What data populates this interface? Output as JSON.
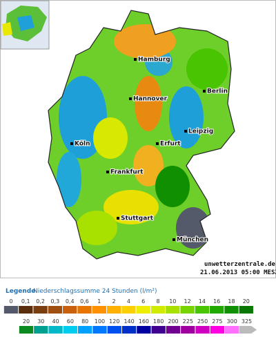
{
  "map": {
    "cities": [
      "Hamburg",
      "Berlin",
      "Hannover",
      "Leipzig",
      "Köln",
      "Erfurt",
      "Frankfurt",
      "Stuttgart",
      "München"
    ],
    "source": "unwetterzentrale.de",
    "timestamp": "21.06.2013 05:00 MESZ"
  },
  "legend": {
    "title": "Legende",
    "subtitle": "Niederschlagssumme 24 Stunden (l/m²)",
    "row1": [
      {
        "label": "0",
        "color": "#555a6a"
      },
      {
        "label": "0,1",
        "color": "#5a2e0c"
      },
      {
        "label": "0,2",
        "color": "#7a3e10"
      },
      {
        "label": "0,3",
        "color": "#a04e10"
      },
      {
        "label": "0,4",
        "color": "#c86010"
      },
      {
        "label": "0,6",
        "color": "#e87400"
      },
      {
        "label": "1",
        "color": "#ff9000"
      },
      {
        "label": "2",
        "color": "#ffb000"
      },
      {
        "label": "4",
        "color": "#ffd000"
      },
      {
        "label": "6",
        "color": "#f0ee00"
      },
      {
        "label": "8",
        "color": "#d0ea00"
      },
      {
        "label": "10",
        "color": "#a8e000"
      },
      {
        "label": "12",
        "color": "#78d400"
      },
      {
        "label": "14",
        "color": "#48c400"
      },
      {
        "label": "16",
        "color": "#20aa00"
      },
      {
        "label": "18",
        "color": "#109000"
      },
      {
        "label": "20",
        "color": "#087800"
      }
    ],
    "row2": [
      {
        "label": "20",
        "color": "#0a8a20"
      },
      {
        "label": "30",
        "color": "#00a090"
      },
      {
        "label": "40",
        "color": "#00b8c8"
      },
      {
        "label": "60",
        "color": "#00ccf0"
      },
      {
        "label": "80",
        "color": "#00a0ff"
      },
      {
        "label": "100",
        "color": "#0078ff"
      },
      {
        "label": "120",
        "color": "#0050f0"
      },
      {
        "label": "140",
        "color": "#0030c8"
      },
      {
        "label": "160",
        "color": "#0000a0"
      },
      {
        "label": "180",
        "color": "#400090"
      },
      {
        "label": "200",
        "color": "#700090"
      },
      {
        "label": "225",
        "color": "#a000a0"
      },
      {
        "label": "250",
        "color": "#d000c0"
      },
      {
        "label": "275",
        "color": "#ff00e0"
      },
      {
        "label": "300",
        "color": "#ff70ff"
      },
      {
        "label": "325",
        "color": "#bbbbbb"
      }
    ]
  }
}
